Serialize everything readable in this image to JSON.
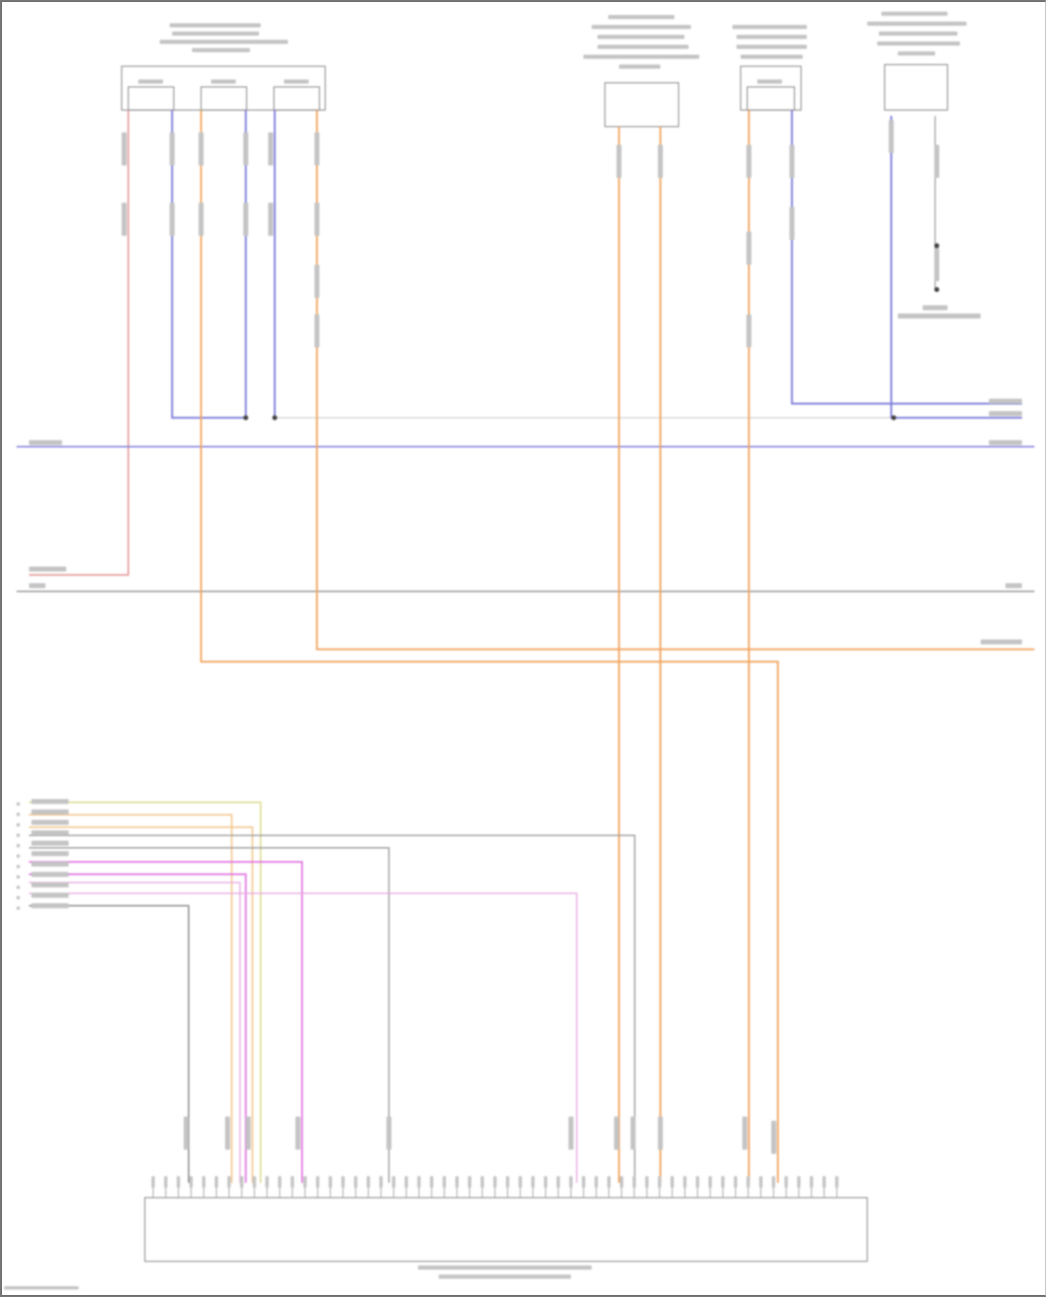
{
  "diagram": {
    "wire_colors": {
      "pink": "#e8a4a4",
      "blue": "#7c7cdc",
      "orange": "#f2a560",
      "gray": "#9a9a9a",
      "dark_gray": "#808080",
      "yellow": "#dada8c",
      "light_orange": "#f2c488",
      "magenta": "#e070e0",
      "light_magenta": "#e8a8e0"
    },
    "components": [
      {
        "id": "relay-block",
        "sub_connectors": 3
      },
      {
        "id": "sensor-module",
        "sub_connectors": 0
      },
      {
        "id": "pressure-sensor",
        "sub_connectors": 1
      },
      {
        "id": "switch-module",
        "sub_connectors": 0
      },
      {
        "id": "engine-control-module",
        "sub_connectors": 0
      }
    ]
  }
}
